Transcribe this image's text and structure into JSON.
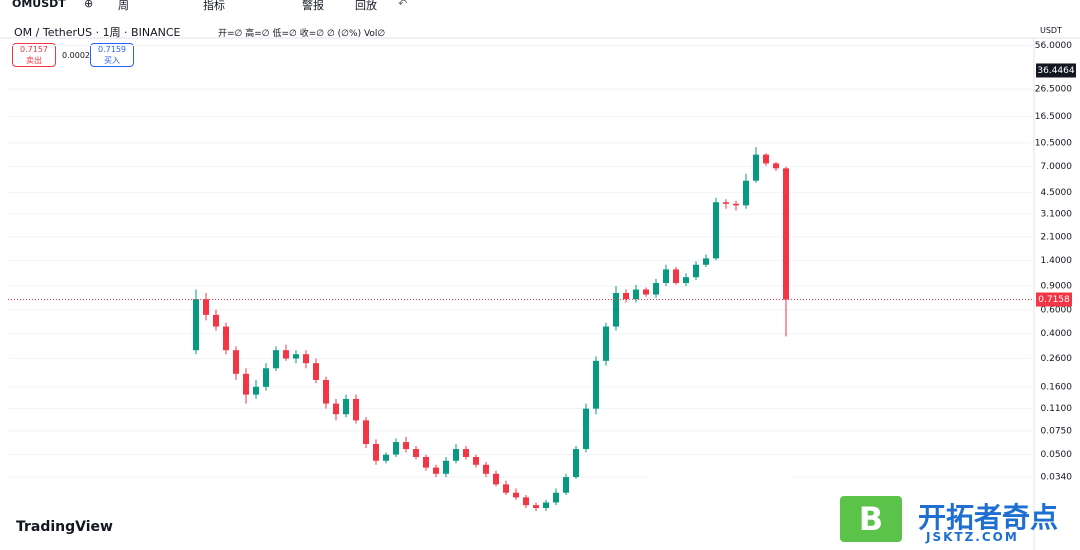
{
  "toolbar": {
    "symbol": "OMUSDT",
    "interval": "周",
    "indicators": "指标",
    "alerts": "警报",
    "replay": "回放",
    "currency": "USDT"
  },
  "legend": {
    "title": "OM / TetherUS · 1周 · BINANCE",
    "ohlc": "开=∅ 高=∅ 低=∅ 收=∅ ∅ (∅%) Vol∅"
  },
  "quote": {
    "sell_price": "0.7157",
    "sell_label": "卖出",
    "spread": "0.0002",
    "buy_price": "0.7159",
    "buy_label": "买入"
  },
  "branding": {
    "logo": "TradingView",
    "watermark_icon": "B",
    "watermark_title": "开拓者奇点",
    "watermark_url": "JSKTZ.COM"
  },
  "chart_data": {
    "type": "candlestick",
    "log_scale": true,
    "up_color": "#089981",
    "down_color": "#f23645",
    "crosshair_price": 36.4464,
    "ylim": [
      0.0106,
      61.5
    ],
    "yticks": [
      {
        "value": 56,
        "label": "56.0000"
      },
      {
        "value": 26.5,
        "label": "26.5000"
      },
      {
        "value": 16.5,
        "label": "16.5000"
      },
      {
        "value": 10.5,
        "label": "10.5000"
      },
      {
        "value": 7,
        "label": "7.0000"
      },
      {
        "value": 4.5,
        "label": "4.5000"
      },
      {
        "value": 3.1,
        "label": "3.1000"
      },
      {
        "value": 2.1,
        "label": "2.1000"
      },
      {
        "value": 1.4,
        "label": "1.4000"
      },
      {
        "value": 0.9,
        "label": "0.9000"
      },
      {
        "value": 0.6,
        "label": "0.6000"
      },
      {
        "value": 0.4,
        "label": "0.4000"
      },
      {
        "value": 0.26,
        "label": "0.2600"
      },
      {
        "value": 0.16,
        "label": "0.1600"
      },
      {
        "value": 0.11,
        "label": "0.1100"
      },
      {
        "value": 0.075,
        "label": "0.0750"
      },
      {
        "value": 0.05,
        "label": "0.0500"
      },
      {
        "value": 0.034,
        "label": "0.0340"
      }
    ],
    "open": [
      0.3,
      0.72,
      0.55,
      0.45,
      0.3,
      0.2,
      0.14,
      0.16,
      0.22,
      0.3,
      0.26,
      0.28,
      0.24,
      0.18,
      0.12,
      0.1,
      0.13,
      0.09,
      0.06,
      0.045,
      0.05,
      0.062,
      0.055,
      0.048,
      0.04,
      0.036,
      0.045,
      0.055,
      0.048,
      0.042,
      0.036,
      0.03,
      0.026,
      0.024,
      0.021,
      0.02,
      0.022,
      0.026,
      0.034,
      0.055,
      0.11,
      0.25,
      0.45,
      0.8,
      0.72,
      0.85,
      0.78,
      0.95,
      1.2,
      0.95,
      1.05,
      1.3,
      1.45,
      3.8,
      3.7,
      3.6,
      5.5,
      8.6,
      7.4,
      6.8
    ],
    "high": [
      0.85,
      0.8,
      0.6,
      0.48,
      0.32,
      0.22,
      0.18,
      0.24,
      0.32,
      0.33,
      0.3,
      0.3,
      0.26,
      0.19,
      0.13,
      0.14,
      0.14,
      0.095,
      0.065,
      0.052,
      0.066,
      0.068,
      0.058,
      0.05,
      0.042,
      0.048,
      0.06,
      0.058,
      0.05,
      0.044,
      0.038,
      0.032,
      0.028,
      0.025,
      0.022,
      0.023,
      0.028,
      0.036,
      0.058,
      0.12,
      0.27,
      0.48,
      0.9,
      0.85,
      0.92,
      0.88,
      1.02,
      1.3,
      1.25,
      1.12,
      1.38,
      1.55,
      4.1,
      4.0,
      3.9,
      6.2,
      9.8,
      8.8,
      7.6,
      7.0
    ],
    "low": [
      0.28,
      0.5,
      0.42,
      0.28,
      0.18,
      0.12,
      0.13,
      0.15,
      0.21,
      0.25,
      0.24,
      0.22,
      0.17,
      0.11,
      0.09,
      0.095,
      0.085,
      0.056,
      0.042,
      0.043,
      0.048,
      0.052,
      0.046,
      0.038,
      0.034,
      0.034,
      0.043,
      0.046,
      0.04,
      0.034,
      0.029,
      0.025,
      0.023,
      0.02,
      0.019,
      0.019,
      0.021,
      0.025,
      0.033,
      0.052,
      0.1,
      0.23,
      0.42,
      0.68,
      0.68,
      0.75,
      0.74,
      0.9,
      0.92,
      0.9,
      1.0,
      1.25,
      1.4,
      3.4,
      3.3,
      3.4,
      5.3,
      7.1,
      6.5,
      0.38
    ],
    "close": [
      0.72,
      0.55,
      0.45,
      0.3,
      0.2,
      0.14,
      0.16,
      0.22,
      0.3,
      0.26,
      0.28,
      0.24,
      0.18,
      0.12,
      0.1,
      0.13,
      0.09,
      0.06,
      0.045,
      0.05,
      0.062,
      0.055,
      0.048,
      0.04,
      0.036,
      0.045,
      0.055,
      0.048,
      0.042,
      0.036,
      0.03,
      0.026,
      0.024,
      0.021,
      0.02,
      0.022,
      0.026,
      0.034,
      0.055,
      0.11,
      0.25,
      0.45,
      0.8,
      0.72,
      0.85,
      0.78,
      0.95,
      1.2,
      0.95,
      1.05,
      1.3,
      1.45,
      3.8,
      3.7,
      3.6,
      5.5,
      8.6,
      7.4,
      6.8,
      0.7158
    ]
  }
}
